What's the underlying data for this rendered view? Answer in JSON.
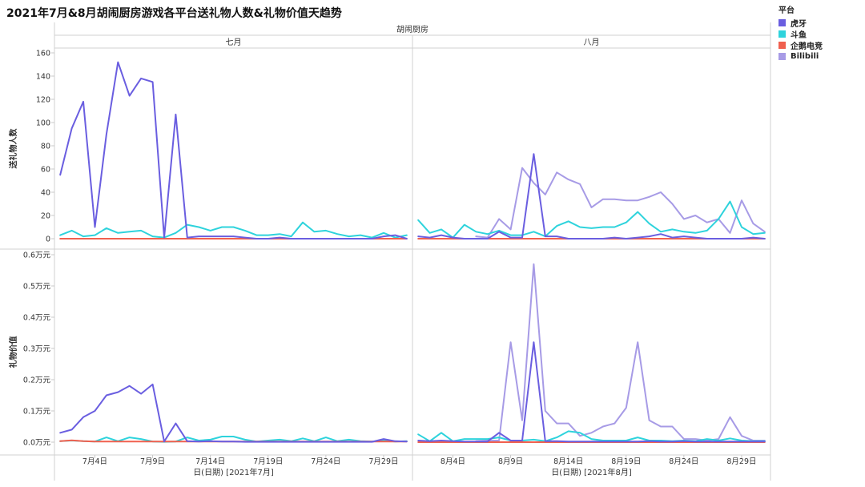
{
  "title": "2021年7月&8月胡闹厨房游戏各平台送礼物人数&礼物价值天趋势",
  "legend": {
    "title": "平台",
    "items": [
      {
        "label": "虎牙",
        "color": "#6a5ee0"
      },
      {
        "label": "斗鱼",
        "color": "#2ed3dc"
      },
      {
        "label": "企鹅电竞",
        "color": "#f0604f"
      },
      {
        "label": "Bilibili",
        "color": "#a79be6"
      }
    ]
  },
  "chart_data": {
    "type": "line",
    "group_title": "胡闹厨房",
    "column_titles": [
      "七月",
      "八月"
    ],
    "row_labels": [
      "送礼物人数",
      "礼物价值"
    ],
    "x_titles": [
      "日(日期) [2021年7月]",
      "日(日期) [2021年8月]"
    ],
    "x_ticks": [
      {
        "values": [
          4,
          9,
          14,
          19,
          24,
          29
        ],
        "labels": [
          "7月4日",
          "7月9日",
          "7月14日",
          "7月19日",
          "7月24日",
          "7月29日"
        ]
      },
      {
        "values": [
          4,
          9,
          14,
          19,
          24,
          29
        ],
        "labels": [
          "8月4日",
          "8月9日",
          "8月14日",
          "8月19日",
          "8月24日",
          "8月29日"
        ]
      }
    ],
    "y_axes": [
      {
        "ylim": [
          0,
          160
        ],
        "ticks": [
          0,
          20,
          40,
          60,
          80,
          100,
          120,
          140,
          160
        ],
        "labels": [
          "0",
          "20",
          "40",
          "60",
          "80",
          "100",
          "120",
          "140",
          "160"
        ]
      },
      {
        "ylim": [
          0,
          0.6
        ],
        "ticks": [
          0,
          0.1,
          0.2,
          0.3,
          0.4,
          0.5,
          0.6
        ],
        "labels": [
          "0.0万元",
          "0.1万元",
          "0.2万元",
          "0.3万元",
          "0.4万元",
          "0.5万元",
          "0.6万元"
        ]
      }
    ],
    "x_range": [
      0.5,
      31.5
    ],
    "days": [
      1,
      2,
      3,
      4,
      5,
      6,
      7,
      8,
      9,
      10,
      11,
      12,
      13,
      14,
      15,
      16,
      17,
      18,
      19,
      20,
      21,
      22,
      23,
      24,
      25,
      26,
      27,
      28,
      29,
      30,
      31
    ],
    "panels": [
      {
        "month": "七月",
        "metric": "送礼物人数",
        "series": [
          {
            "name": "虎牙",
            "values": [
              55,
              95,
              118,
              10,
              90,
              152,
              123,
              138,
              135,
              1,
              107,
              1,
              2,
              2,
              2,
              2,
              1,
              0,
              0,
              1,
              0,
              0,
              0,
              0,
              0,
              0,
              0,
              0,
              2,
              3,
              0
            ]
          },
          {
            "name": "斗鱼",
            "values": [
              3,
              7,
              2,
              3,
              9,
              5,
              6,
              7,
              2,
              1,
              5,
              12,
              10,
              7,
              10,
              10,
              7,
              3,
              3,
              4,
              2,
              14,
              6,
              7,
              4,
              2,
              3,
              1,
              5,
              1,
              3
            ]
          },
          {
            "name": "企鹅电竞",
            "values": [
              0,
              0,
              0,
              0,
              0,
              0,
              0,
              0,
              0,
              0,
              0,
              0,
              0,
              0,
              0,
              0,
              0,
              0,
              0,
              0,
              0,
              0,
              0,
              0,
              0,
              0,
              0,
              0,
              0,
              0,
              0
            ]
          },
          {
            "name": "Bilibili",
            "values": [
              null,
              null,
              null,
              null,
              null,
              null,
              null,
              null,
              null,
              null,
              null,
              null,
              null,
              null,
              null,
              null,
              null,
              null,
              null,
              null,
              null,
              null,
              null,
              null,
              null,
              null,
              null,
              null,
              null,
              null,
              null
            ]
          }
        ]
      },
      {
        "month": "八月",
        "metric": "送礼物人数",
        "series": [
          {
            "name": "虎牙",
            "values": [
              2,
              1,
              3,
              1,
              0,
              0,
              0,
              6,
              1,
              1,
              73,
              2,
              2,
              0,
              0,
              0,
              0,
              1,
              0,
              1,
              2,
              4,
              1,
              2,
              1,
              0,
              0,
              0,
              0,
              1,
              0
            ]
          },
          {
            "name": "斗鱼",
            "values": [
              16,
              5,
              8,
              1,
              12,
              6,
              4,
              7,
              3,
              3,
              6,
              2,
              11,
              15,
              10,
              9,
              10,
              10,
              14,
              23,
              13,
              6,
              8,
              6,
              5,
              7,
              17,
              32,
              10,
              4,
              5
            ]
          },
          {
            "name": "企鹅电竞",
            "values": [
              0,
              0,
              0,
              0,
              0,
              0,
              0,
              0,
              0,
              0,
              0,
              0,
              0,
              0,
              0,
              0,
              0,
              0,
              0,
              0,
              0,
              0,
              0,
              0,
              0,
              0,
              0,
              0,
              0,
              0,
              0
            ]
          },
          {
            "name": "Bilibili",
            "values": [
              null,
              null,
              null,
              null,
              null,
              2,
              1,
              17,
              8,
              61,
              48,
              38,
              57,
              51,
              47,
              27,
              34,
              34,
              33,
              33,
              36,
              40,
              30,
              17,
              20,
              14,
              17,
              5,
              33,
              13,
              6
            ]
          }
        ]
      },
      {
        "month": "七月",
        "metric": "礼物价值",
        "series": [
          {
            "name": "虎牙",
            "values": [
              0.03,
              0.04,
              0.08,
              0.1,
              0.15,
              0.16,
              0.18,
              0.155,
              0.185,
              0.002,
              0.06,
              0.003,
              0.002,
              0.003,
              0.002,
              0.002,
              0.001,
              0.001,
              0.001,
              0.001,
              0.001,
              0.001,
              0.001,
              0.001,
              0.001,
              0.001,
              0.001,
              0.001,
              0.01,
              0.003,
              0.002
            ]
          },
          {
            "name": "斗鱼",
            "values": [
              0.003,
              0.005,
              0.003,
              0.002,
              0.015,
              0.003,
              0.015,
              0.01,
              0.002,
              0.001,
              0.002,
              0.015,
              0.005,
              0.008,
              0.018,
              0.018,
              0.008,
              0.002,
              0.005,
              0.008,
              0.003,
              0.012,
              0.003,
              0.015,
              0.003,
              0.008,
              0.003,
              0.002,
              0.005,
              0.002,
              0.003
            ]
          },
          {
            "name": "企鹅电竞",
            "values": [
              0.003,
              0.006,
              0.003,
              0.002,
              0.002,
              0.002,
              0.002,
              0.002,
              0.002,
              0.002,
              0.002,
              0.002,
              0.002,
              0.002,
              0.002,
              0.002,
              0.002,
              0.002,
              0.002,
              0.002,
              0.002,
              0.002,
              0.002,
              0.002,
              0.002,
              0.002,
              0.002,
              0.002,
              0.002,
              0.002,
              0.002
            ]
          },
          {
            "name": "Bilibili",
            "values": [
              null,
              null,
              null,
              null,
              null,
              null,
              null,
              null,
              null,
              null,
              null,
              null,
              null,
              null,
              null,
              null,
              null,
              null,
              null,
              null,
              null,
              null,
              null,
              null,
              null,
              null,
              null,
              null,
              null,
              null,
              null
            ]
          }
        ]
      },
      {
        "month": "八月",
        "metric": "礼物价值",
        "series": [
          {
            "name": "虎牙",
            "values": [
              0.005,
              0.003,
              0.005,
              0.003,
              0.002,
              0.002,
              0.002,
              0.03,
              0.005,
              0.005,
              0.32,
              0.003,
              0.003,
              0.002,
              0.002,
              0.002,
              0.002,
              0.002,
              0.002,
              0.002,
              0.003,
              0.002,
              0.002,
              0.003,
              0.002,
              0.002,
              0.002,
              0.002,
              0.002,
              0.002,
              0.002
            ]
          },
          {
            "name": "斗鱼",
            "values": [
              0.025,
              0.003,
              0.03,
              0.003,
              0.01,
              0.01,
              0.01,
              0.015,
              0.005,
              0.005,
              0.008,
              0.003,
              0.015,
              0.035,
              0.03,
              0.01,
              0.005,
              0.005,
              0.005,
              0.015,
              0.005,
              0.005,
              0.003,
              0.005,
              0.003,
              0.01,
              0.005,
              0.012,
              0.005,
              0.003,
              0.003
            ]
          },
          {
            "name": "企鹅电竞",
            "values": [
              0,
              0,
              0,
              0,
              0,
              0,
              0,
              0,
              0,
              0,
              0,
              0,
              0,
              0,
              0,
              0,
              0,
              0,
              0,
              0,
              0,
              0,
              0,
              0,
              0,
              0,
              0,
              0,
              0,
              0,
              0
            ]
          },
          {
            "name": "Bilibili",
            "values": [
              null,
              null,
              null,
              null,
              null,
              0.003,
              0.005,
              0.005,
              0.32,
              0.07,
              0.57,
              0.1,
              0.06,
              0.06,
              0.02,
              0.03,
              0.05,
              0.06,
              0.11,
              0.32,
              0.07,
              0.05,
              0.05,
              0.01,
              0.01,
              0.005,
              0.01,
              0.08,
              0.02,
              0.005,
              0.005
            ]
          }
        ]
      }
    ],
    "grid": false,
    "legend_position": "top-right"
  }
}
